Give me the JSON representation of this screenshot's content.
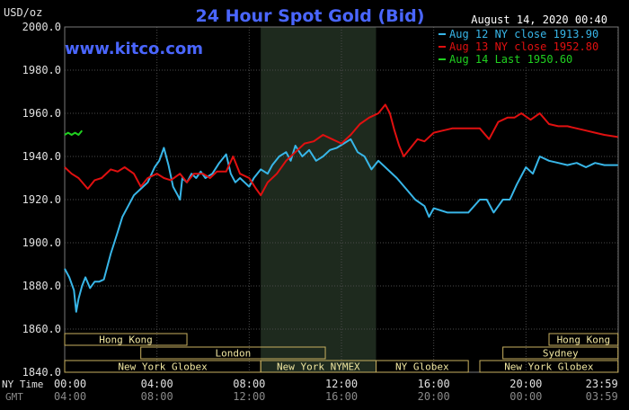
{
  "chart_data": {
    "type": "line",
    "title": "24 Hour Spot Gold (Bid)",
    "brand": "www.kitco.com",
    "ylabel": "USD/oz",
    "timestamp": "August 14, 2020 00:40",
    "ylim": [
      1840,
      2000
    ],
    "xlim": [
      0,
      24
    ],
    "y_ticks": [
      "2000.0",
      "1980.0",
      "1960.0",
      "1940.0",
      "1920.0",
      "1900.0",
      "1880.0",
      "1860.0",
      "1840.0"
    ],
    "x_row_labels": {
      "ny": "NY Time",
      "gmt": "GMT"
    },
    "x_ticks_ny": [
      "00:00",
      "04:00",
      "08:00",
      "12:00",
      "16:00",
      "20:00",
      "23:59"
    ],
    "x_ticks_gmt": [
      "04:00",
      "08:00",
      "12:00",
      "16:00",
      "20:00",
      "00:00",
      "03:59"
    ],
    "highlight_region": [
      8.5,
      13.5
    ],
    "legend": [
      {
        "text": "Aug 12 NY close 1913.90",
        "color": "#38b6e8"
      },
      {
        "text": "Aug 13 NY close 1952.80",
        "color": "#e01010"
      },
      {
        "text": "Aug 14 Last 1950.60",
        "color": "#20d020"
      }
    ],
    "series": [
      {
        "name": "Aug 12",
        "color": "#38b6e8",
        "x": [
          0,
          0.2,
          0.4,
          0.5,
          0.6,
          0.75,
          0.9,
          1.1,
          1.3,
          1.5,
          1.7,
          2.0,
          2.3,
          2.5,
          2.8,
          3.0,
          3.3,
          3.6,
          3.9,
          4.1,
          4.3,
          4.5,
          4.7,
          4.9,
          5.0,
          5.1,
          5.3,
          5.5,
          5.7,
          5.9,
          6.1,
          6.4,
          6.7,
          7.0,
          7.2,
          7.4,
          7.6,
          7.8,
          8.0,
          8.2,
          8.5,
          8.8,
          9.0,
          9.3,
          9.6,
          9.8,
          10.0,
          10.3,
          10.6,
          10.9,
          11.2,
          11.5,
          11.8,
          12.1,
          12.4,
          12.7,
          13.0,
          13.3,
          13.6,
          14.0,
          14.4,
          14.8,
          15.2,
          15.6,
          15.8,
          16.0,
          16.3,
          16.6,
          17.0,
          17.5,
          18.0,
          18.3,
          18.6,
          19.0,
          19.3,
          19.6,
          20.0,
          20.3,
          20.6,
          21.0,
          21.4,
          21.8,
          22.2,
          22.6,
          23.0,
          23.4,
          23.99
        ],
        "values": [
          1888,
          1884,
          1878,
          1868,
          1874,
          1880,
          1884,
          1879,
          1882,
          1882,
          1883,
          1895,
          1905,
          1912,
          1918,
          1922,
          1925,
          1928,
          1935,
          1938,
          1944,
          1936,
          1926,
          1922,
          1920,
          1930,
          1928,
          1932,
          1930,
          1933,
          1930,
          1932,
          1937,
          1941,
          1932,
          1928,
          1930,
          1928,
          1926,
          1930,
          1934,
          1932,
          1936,
          1940,
          1942,
          1938,
          1945,
          1940,
          1943,
          1938,
          1940,
          1943,
          1944,
          1946,
          1948,
          1942,
          1940,
          1934,
          1938,
          1934,
          1930,
          1925,
          1920,
          1917,
          1912,
          1916,
          1915,
          1914,
          1914,
          1914,
          1920,
          1920,
          1914,
          1920,
          1920,
          1927,
          1935,
          1932,
          1940,
          1938,
          1937,
          1936,
          1937,
          1935,
          1937,
          1936,
          1936
        ]
      },
      {
        "name": "Aug 13",
        "color": "#e01010",
        "x": [
          0,
          0.3,
          0.6,
          1.0,
          1.3,
          1.6,
          2.0,
          2.3,
          2.6,
          3.0,
          3.3,
          3.6,
          4.0,
          4.3,
          4.6,
          5.0,
          5.3,
          5.6,
          6.0,
          6.3,
          6.6,
          7.0,
          7.3,
          7.6,
          8.0,
          8.3,
          8.5,
          8.8,
          9.2,
          9.6,
          10.0,
          10.4,
          10.8,
          11.2,
          11.6,
          12.0,
          12.4,
          12.8,
          13.2,
          13.6,
          13.9,
          14.1,
          14.3,
          14.5,
          14.7,
          15.0,
          15.3,
          15.6,
          16.0,
          16.4,
          16.8,
          17.2,
          17.6,
          18.0,
          18.4,
          18.8,
          19.2,
          19.5,
          19.8,
          20.2,
          20.6,
          21.0,
          21.4,
          21.8,
          22.2,
          22.6,
          23.0,
          23.4,
          23.99
        ],
        "values": [
          1935,
          1932,
          1930,
          1925,
          1929,
          1930,
          1934,
          1933,
          1935,
          1932,
          1926,
          1930,
          1932,
          1930,
          1929,
          1932,
          1928,
          1932,
          1932,
          1930,
          1933,
          1933,
          1940,
          1932,
          1930,
          1925,
          1922,
          1928,
          1932,
          1938,
          1942,
          1946,
          1947,
          1950,
          1948,
          1946,
          1950,
          1955,
          1958,
          1960,
          1964,
          1960,
          1952,
          1945,
          1940,
          1944,
          1948,
          1947,
          1951,
          1952,
          1953,
          1953,
          1953,
          1953,
          1948,
          1956,
          1958,
          1958,
          1960,
          1957,
          1960,
          1955,
          1954,
          1954,
          1953,
          1952,
          1951,
          1950,
          1949
        ]
      },
      {
        "name": "Aug 14",
        "color": "#20d020",
        "x": [
          0,
          0.15,
          0.3,
          0.45,
          0.6,
          0.75
        ],
        "values": [
          1950,
          1951,
          1950,
          1951,
          1950,
          1952
        ]
      }
    ],
    "sessions": [
      {
        "label": "Hong Kong",
        "start": 0,
        "end": 5.3,
        "row": 0
      },
      {
        "label": "London",
        "start": 3.3,
        "end": 11.3,
        "row": 1
      },
      {
        "label": "New York Globex",
        "start": 0,
        "end": 8.5,
        "row": 2
      },
      {
        "label": "New York NYMEX",
        "start": 8.5,
        "end": 13.5,
        "row": 2
      },
      {
        "label": "NY Globex",
        "start": 13.5,
        "end": 17.5,
        "row": 2
      },
      {
        "label": "Hong Kong",
        "start": 21.0,
        "end": 23.99,
        "row": 0
      },
      {
        "label": "Sydney",
        "start": 19.0,
        "end": 23.99,
        "row": 1
      },
      {
        "label": "New York Globex",
        "start": 18.0,
        "end": 23.99,
        "row": 2
      }
    ]
  }
}
